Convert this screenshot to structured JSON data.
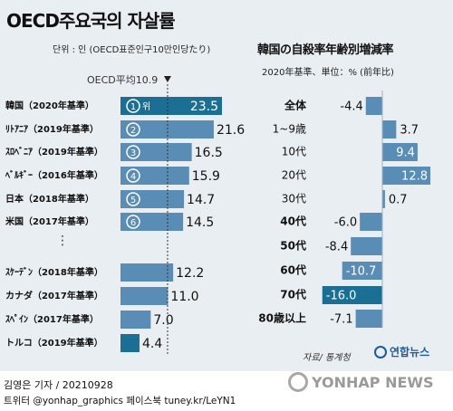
{
  "title": "OECD주요국의 자살률",
  "unit_left": "단위 : 인 (OECD표준인구10만인당たり)",
  "right_title": "韓国の自殺率年齢別増減率",
  "unit_right": "2020年基準、単位：% (前年比)",
  "oecd_avg_label": "OECD平均10.9",
  "source": "자료/ 통계청",
  "logo": "연합뉴스",
  "credit": "김영은 기자 / 20210928",
  "social": "트위터 @yonhap_graphics  페이스북 tuney.kr/LeYN1",
  "watermark": "YONHAP NEWS",
  "chart_data": [
    {
      "type": "bar",
      "orientation": "horizontal",
      "title": "OECD주요국의 자살률",
      "categories": [
        "韓国（2020年基準）",
        "ﾘﾄｱﾆｱ（2019年基準）",
        "ｽﾛﾍﾞﾆｱ（2019年基準）",
        "ﾍﾞﾙｷﾞｰ（2016年基準）",
        "日本（2018年基準）",
        "米国（2017年基準）",
        "ｽｹｰﾃﾞﾝ（2018年基準）",
        "カナダ（2017年基準）",
        "ｽﾍﾟｲﾝ（2017年基準）",
        "トルコ（2019年基準）"
      ],
      "values": [
        23.5,
        21.6,
        16.5,
        15.9,
        14.7,
        14.5,
        12.2,
        11.0,
        7.0,
        4.4
      ],
      "value_labels": [
        "23.5",
        "21.6",
        "16.5",
        "15.9",
        "14.7",
        "14.5",
        "12.2",
        "11.0",
        "7.0",
        "4.4"
      ],
      "ranks": [
        "1",
        "2",
        "3",
        "4",
        "5",
        "6"
      ],
      "rank_suffix": "위",
      "reference_line": {
        "label": "OECD平均10.9",
        "value": 10.9
      },
      "colors": {
        "korea": "#1b6f95",
        "others": "#5a8db5",
        "turkey": "#1b6f95"
      }
    },
    {
      "type": "bar",
      "orientation": "horizontal",
      "title": "韓国の自殺率年齢別増減率",
      "categories": [
        "全体",
        "1~9歳",
        "10代",
        "20代",
        "30代",
        "40代",
        "50代",
        "60代",
        "70代",
        "80歳以上"
      ],
      "values": [
        -4.4,
        3.7,
        9.4,
        12.8,
        0.7,
        -6.0,
        -8.4,
        -10.7,
        -16.0,
        -7.1
      ],
      "value_labels": [
        "-4.4",
        "3.7",
        "9.4",
        "12.8",
        "0.7",
        "-6.0",
        "-8.4",
        "-10.7",
        "-16.0",
        "-7.1"
      ],
      "colors": {
        "bar": "#5a8db5",
        "highlight": "#1b6f95"
      }
    }
  ]
}
